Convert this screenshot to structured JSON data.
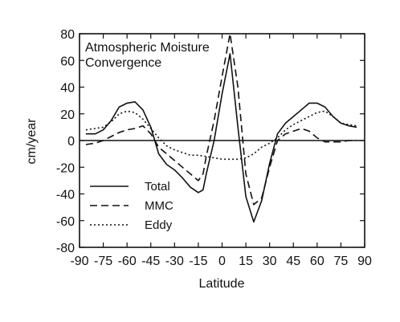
{
  "chart_data": {
    "type": "line",
    "title": [
      "Atmospheric Moisture",
      "Convergence"
    ],
    "xlabel": "Latitude",
    "ylabel": "cm/year",
    "xlim": [
      -90,
      90
    ],
    "ylim": [
      -80,
      80
    ],
    "xticks": [
      -90,
      -75,
      -60,
      -45,
      -30,
      -15,
      0,
      15,
      30,
      45,
      60,
      75,
      90
    ],
    "yticks": [
      -80,
      -60,
      -40,
      -20,
      0,
      20,
      40,
      60,
      80
    ],
    "zero_line": true,
    "grid": false,
    "legend_position": "lower-left",
    "series": [
      {
        "name": "Total",
        "style": "solid",
        "x": [
          -86,
          -80,
          -75,
          -70,
          -65,
          -60,
          -55,
          -50,
          -45,
          -40,
          -35,
          -30,
          -25,
          -20,
          -15,
          -12,
          -10,
          -5,
          0,
          5,
          10,
          15,
          20,
          25,
          30,
          35,
          40,
          45,
          50,
          55,
          60,
          65,
          70,
          75,
          80,
          85
        ],
        "y": [
          5,
          5,
          8,
          15,
          25,
          28,
          29,
          23,
          10,
          -10,
          -18,
          -22,
          -28,
          -35,
          -39,
          -37,
          -25,
          0,
          35,
          65,
          10,
          -42,
          -61,
          -45,
          -17,
          5,
          13,
          18,
          23,
          28,
          28,
          25,
          18,
          13,
          11,
          10
        ]
      },
      {
        "name": "MMC",
        "style": "dashed",
        "x": [
          -86,
          -80,
          -75,
          -70,
          -65,
          -60,
          -55,
          -50,
          -45,
          -40,
          -35,
          -30,
          -25,
          -20,
          -15,
          -12,
          -10,
          -5,
          0,
          5,
          10,
          15,
          20,
          25,
          30,
          35,
          40,
          45,
          50,
          55,
          60,
          65,
          70,
          75,
          80,
          85
        ],
        "y": [
          -3,
          -2,
          0,
          3,
          6,
          8,
          9,
          11,
          5,
          -5,
          -10,
          -15,
          -20,
          -25,
          -30,
          -25,
          -12,
          15,
          48,
          80,
          40,
          -25,
          -48,
          -43,
          -20,
          0,
          5,
          7,
          9,
          7,
          2,
          -1,
          -1,
          -1,
          0,
          0
        ]
      },
      {
        "name": "Eddy",
        "style": "dotted",
        "x": [
          -86,
          -80,
          -75,
          -70,
          -65,
          -60,
          -55,
          -50,
          -45,
          -40,
          -35,
          -30,
          -25,
          -20,
          -15,
          -10,
          -5,
          0,
          5,
          10,
          15,
          20,
          25,
          30,
          35,
          40,
          45,
          50,
          55,
          60,
          65,
          70,
          75,
          80,
          85
        ],
        "y": [
          8,
          9,
          10,
          14,
          20,
          22,
          21,
          16,
          9,
          2,
          -4,
          -7,
          -9,
          -11,
          -11,
          -12,
          -13,
          -14,
          -14,
          -14,
          -13,
          -10,
          -5,
          -2,
          2,
          8,
          12,
          15,
          18,
          21,
          22,
          18,
          13,
          12,
          11
        ]
      }
    ]
  }
}
